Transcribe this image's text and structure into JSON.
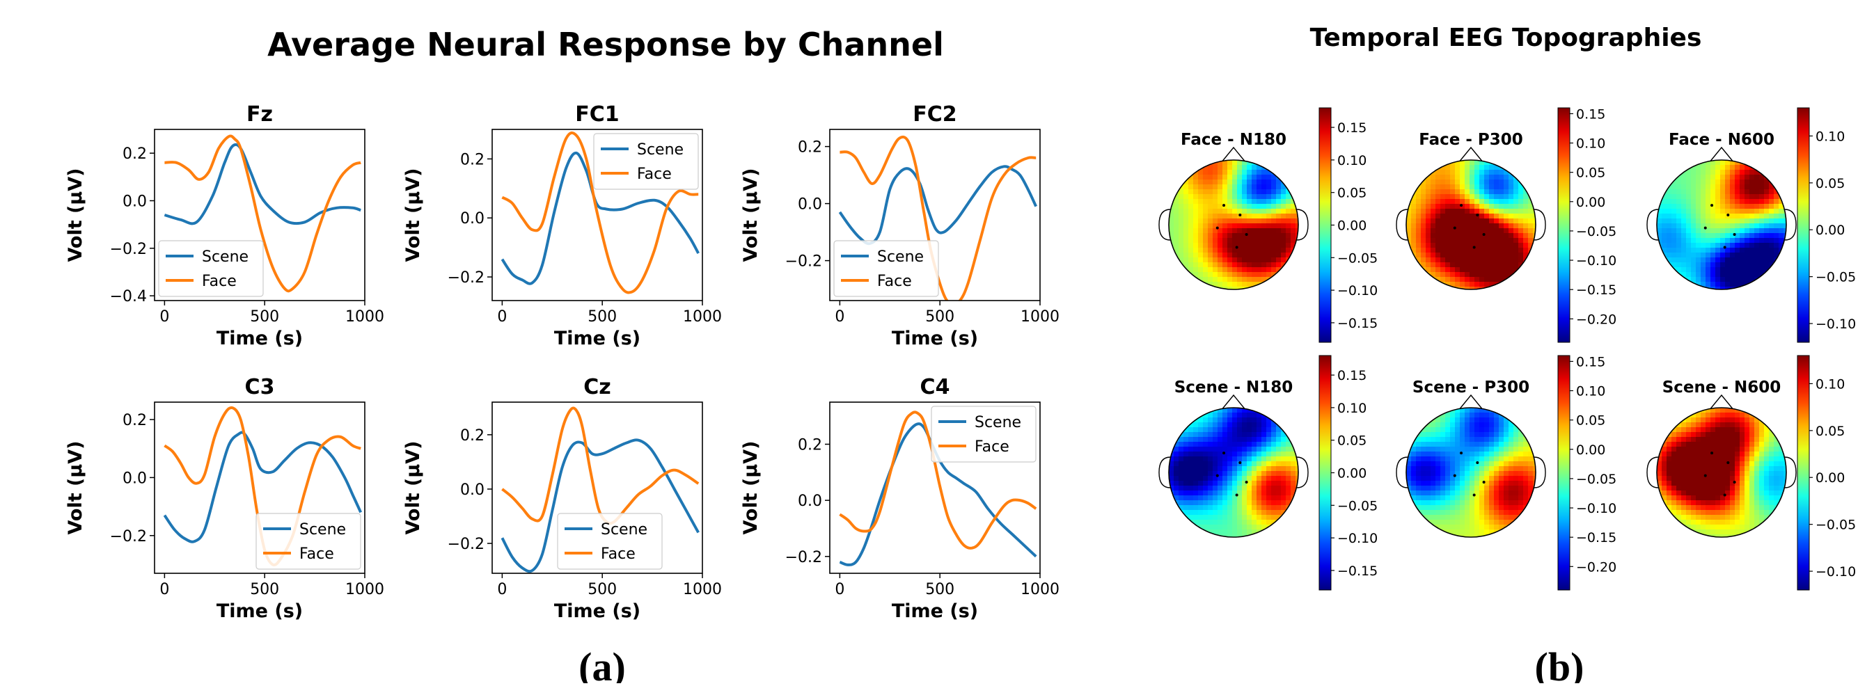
{
  "figure": {
    "panel_a_label": "(a)",
    "panel_b_label": "(b)",
    "left_title": "Average Neural Response by Channel",
    "right_title": "Temporal EEG Topographies"
  },
  "colors": {
    "scene": "#1f77b4",
    "face": "#ff7f0e"
  },
  "chart_data": [
    {
      "type": "line",
      "title": "Fz",
      "xlabel": "Time (s)",
      "ylabel": "Volt (μV)",
      "xlim": [
        -50,
        1000
      ],
      "ylim": [
        -0.42,
        0.3
      ],
      "xticks": [
        0,
        500,
        1000
      ],
      "xtick_labels": [
        "0",
        "500",
        "1000"
      ],
      "yticks": [
        -0.4,
        -0.2,
        0.0,
        0.2
      ],
      "ytick_labels": [
        "−0.4",
        "−0.2",
        "0.0",
        "0.2"
      ],
      "legend": "lower-left",
      "series": [
        {
          "name": "Scene",
          "x": [
            0,
            80,
            160,
            240,
            300,
            340,
            380,
            430,
            480,
            540,
            620,
            700,
            780,
            860,
            940,
            980
          ],
          "y": [
            -0.06,
            -0.08,
            -0.09,
            0.02,
            0.16,
            0.23,
            0.22,
            0.12,
            0.02,
            -0.04,
            -0.09,
            -0.09,
            -0.05,
            -0.03,
            -0.03,
            -0.04
          ]
        },
        {
          "name": "Face",
          "x": [
            0,
            60,
            120,
            170,
            220,
            270,
            320,
            350,
            380,
            430,
            480,
            540,
            600,
            640,
            700,
            760,
            820,
            880,
            940,
            980
          ],
          "y": [
            0.16,
            0.16,
            0.13,
            0.09,
            0.12,
            0.22,
            0.27,
            0.26,
            0.22,
            0.06,
            -0.12,
            -0.28,
            -0.37,
            -0.37,
            -0.3,
            -0.14,
            0.0,
            0.1,
            0.15,
            0.16
          ]
        }
      ]
    },
    {
      "type": "line",
      "title": "FC1",
      "xlabel": "Time (s)",
      "ylabel": "Volt (μV)",
      "xlim": [
        -50,
        1000
      ],
      "ylim": [
        -0.28,
        0.3
      ],
      "xticks": [
        0,
        500,
        1000
      ],
      "xtick_labels": [
        "0",
        "500",
        "1000"
      ],
      "yticks": [
        -0.2,
        0.0,
        0.2
      ],
      "ytick_labels": [
        "−0.2",
        "0.0",
        "0.2"
      ],
      "legend": "top-right",
      "series": [
        {
          "name": "Scene",
          "x": [
            0,
            50,
            100,
            150,
            200,
            260,
            320,
            370,
            420,
            470,
            520,
            600,
            680,
            760,
            820,
            880,
            940,
            980
          ],
          "y": [
            -0.14,
            -0.19,
            -0.21,
            -0.22,
            -0.16,
            0.02,
            0.17,
            0.22,
            0.16,
            0.05,
            0.03,
            0.03,
            0.05,
            0.06,
            0.04,
            -0.01,
            -0.07,
            -0.12
          ]
        },
        {
          "name": "Face",
          "x": [
            0,
            50,
            100,
            150,
            200,
            260,
            320,
            370,
            420,
            470,
            540,
            600,
            650,
            700,
            760,
            820,
            880,
            940,
            980
          ],
          "y": [
            0.07,
            0.05,
            0.0,
            -0.04,
            -0.02,
            0.14,
            0.27,
            0.28,
            0.2,
            0.03,
            -0.16,
            -0.24,
            -0.25,
            -0.21,
            -0.11,
            0.03,
            0.09,
            0.08,
            0.08
          ]
        }
      ]
    },
    {
      "type": "line",
      "title": "FC2",
      "xlabel": "Time (s)",
      "ylabel": "Volt (μV)",
      "xlim": [
        -50,
        1000
      ],
      "ylim": [
        -0.34,
        0.26
      ],
      "xticks": [
        0,
        500,
        1000
      ],
      "xtick_labels": [
        "0",
        "500",
        "1000"
      ],
      "yticks": [
        -0.2,
        0.0,
        0.2
      ],
      "ytick_labels": [
        "−0.2",
        "0.0",
        "0.2"
      ],
      "legend": "lower-left",
      "series": [
        {
          "name": "Scene",
          "x": [
            0,
            50,
            100,
            150,
            200,
            250,
            300,
            350,
            400,
            440,
            480,
            520,
            580,
            640,
            700,
            760,
            820,
            860,
            900,
            940,
            980
          ],
          "y": [
            -0.03,
            -0.08,
            -0.12,
            -0.14,
            -0.1,
            0.05,
            0.11,
            0.12,
            0.07,
            -0.02,
            -0.09,
            -0.1,
            -0.06,
            0.0,
            0.06,
            0.11,
            0.13,
            0.12,
            0.1,
            0.05,
            -0.01
          ]
        },
        {
          "name": "Face",
          "x": [
            0,
            40,
            80,
            120,
            160,
            200,
            260,
            300,
            340,
            380,
            420,
            460,
            520,
            560,
            600,
            640,
            700,
            760,
            820,
            880,
            940,
            980
          ],
          "y": [
            0.18,
            0.18,
            0.16,
            0.11,
            0.07,
            0.1,
            0.19,
            0.23,
            0.22,
            0.13,
            -0.03,
            -0.18,
            -0.32,
            -0.35,
            -0.34,
            -0.28,
            -0.13,
            0.02,
            0.1,
            0.14,
            0.16,
            0.16
          ]
        }
      ]
    },
    {
      "type": "line",
      "title": "C3",
      "xlabel": "Time (s)",
      "ylabel": "Volt (μV)",
      "xlim": [
        -50,
        1000
      ],
      "ylim": [
        -0.33,
        0.26
      ],
      "xticks": [
        0,
        500,
        1000
      ],
      "xtick_labels": [
        "0",
        "500",
        "1000"
      ],
      "yticks": [
        -0.2,
        0.0,
        0.2
      ],
      "ytick_labels": [
        "−0.2",
        "0.0",
        "0.2"
      ],
      "legend": "lower-right",
      "series": [
        {
          "name": "Scene",
          "x": [
            0,
            50,
            100,
            150,
            200,
            260,
            320,
            370,
            400,
            440,
            480,
            540,
            600,
            660,
            720,
            780,
            840,
            900,
            940,
            980
          ],
          "y": [
            -0.13,
            -0.18,
            -0.21,
            -0.22,
            -0.18,
            -0.03,
            0.11,
            0.15,
            0.15,
            0.1,
            0.03,
            0.02,
            0.06,
            0.1,
            0.12,
            0.11,
            0.07,
            0.0,
            -0.06,
            -0.12
          ]
        },
        {
          "name": "Face",
          "x": [
            0,
            40,
            80,
            120,
            160,
            200,
            250,
            300,
            340,
            380,
            420,
            460,
            500,
            540,
            580,
            640,
            700,
            760,
            820,
            880,
            940,
            980
          ],
          "y": [
            0.11,
            0.09,
            0.05,
            0.0,
            -0.02,
            0.01,
            0.14,
            0.22,
            0.24,
            0.2,
            0.07,
            -0.11,
            -0.25,
            -0.3,
            -0.28,
            -0.2,
            -0.05,
            0.08,
            0.13,
            0.14,
            0.11,
            0.1
          ]
        }
      ]
    },
    {
      "type": "line",
      "title": "Cz",
      "xlabel": "Time (s)",
      "ylabel": "Volt (μV)",
      "xlim": [
        -50,
        1000
      ],
      "ylim": [
        -0.31,
        0.32
      ],
      "xticks": [
        0,
        500,
        1000
      ],
      "xtick_labels": [
        "0",
        "500",
        "1000"
      ],
      "yticks": [
        -0.2,
        0.0,
        0.2
      ],
      "ytick_labels": [
        "−0.2",
        "0.0",
        "0.2"
      ],
      "legend": "lower-center",
      "series": [
        {
          "name": "Scene",
          "x": [
            0,
            50,
            100,
            150,
            200,
            250,
            300,
            350,
            400,
            450,
            500,
            560,
            620,
            680,
            740,
            800,
            860,
            920,
            980
          ],
          "y": [
            -0.18,
            -0.25,
            -0.29,
            -0.3,
            -0.24,
            -0.08,
            0.08,
            0.16,
            0.17,
            0.13,
            0.13,
            0.15,
            0.17,
            0.18,
            0.15,
            0.08,
            0.0,
            -0.08,
            -0.16
          ]
        },
        {
          "name": "Face",
          "x": [
            0,
            50,
            100,
            150,
            200,
            250,
            300,
            340,
            370,
            400,
            440,
            480,
            520,
            560,
            620,
            680,
            740,
            800,
            860,
            920,
            980
          ],
          "y": [
            0.0,
            -0.03,
            -0.07,
            -0.11,
            -0.1,
            0.05,
            0.22,
            0.29,
            0.29,
            0.23,
            0.07,
            -0.07,
            -0.12,
            -0.12,
            -0.07,
            -0.02,
            0.01,
            0.05,
            0.07,
            0.05,
            0.02
          ]
        }
      ]
    },
    {
      "type": "line",
      "title": "C4",
      "xlabel": "Time (s)",
      "ylabel": "Volt (μV)",
      "xlim": [
        -50,
        1000
      ],
      "ylim": [
        -0.26,
        0.35
      ],
      "xticks": [
        0,
        500,
        1000
      ],
      "xtick_labels": [
        "0",
        "500",
        "1000"
      ],
      "yticks": [
        -0.2,
        0.0,
        0.2
      ],
      "ytick_labels": [
        "−0.2",
        "0.0",
        "0.2"
      ],
      "legend": "top-right",
      "series": [
        {
          "name": "Scene",
          "x": [
            0,
            40,
            80,
            120,
            160,
            200,
            260,
            320,
            380,
            420,
            460,
            500,
            540,
            580,
            620,
            680,
            740,
            800,
            860,
            920,
            980
          ],
          "y": [
            -0.22,
            -0.23,
            -0.22,
            -0.17,
            -0.09,
            0.0,
            0.12,
            0.22,
            0.27,
            0.26,
            0.2,
            0.14,
            0.1,
            0.08,
            0.06,
            0.03,
            -0.03,
            -0.08,
            -0.12,
            -0.16,
            -0.2
          ]
        },
        {
          "name": "Face",
          "x": [
            0,
            40,
            80,
            120,
            160,
            200,
            260,
            320,
            360,
            390,
            420,
            460,
            500,
            540,
            580,
            620,
            660,
            700,
            760,
            820,
            860,
            900,
            940,
            980
          ],
          "y": [
            -0.05,
            -0.07,
            -0.1,
            -0.11,
            -0.1,
            -0.04,
            0.12,
            0.27,
            0.31,
            0.31,
            0.28,
            0.18,
            0.05,
            -0.06,
            -0.12,
            -0.16,
            -0.17,
            -0.15,
            -0.08,
            -0.02,
            0.0,
            0.0,
            -0.01,
            -0.03
          ]
        }
      ]
    },
    {
      "type": "heatmap",
      "title": "Face - N180",
      "colormap": "jet",
      "range": [
        -0.18,
        0.18
      ],
      "ticks": [
        0.15,
        0.1,
        0.05,
        0.0,
        -0.05,
        -0.1,
        -0.15
      ],
      "tick_labels": [
        "0.15",
        "0.10",
        "0.05",
        "0.00",
        "−0.05",
        "−0.10",
        "−0.15"
      ],
      "sources": [
        [
          0.0,
          0.0,
          -0.002
        ],
        [
          0.45,
          -0.5,
          -0.18
        ],
        [
          -0.3,
          -0.85,
          0.12
        ],
        [
          0.4,
          0.35,
          0.18
        ],
        [
          -0.1,
          0.2,
          0.1
        ],
        [
          0.85,
          0.0,
          0.12
        ]
      ]
    },
    {
      "type": "heatmap",
      "title": "Face - P300",
      "colormap": "jet",
      "range": [
        -0.24,
        0.16
      ],
      "ticks": [
        0.15,
        0.1,
        0.05,
        0.0,
        -0.05,
        -0.1,
        -0.15,
        -0.2
      ],
      "tick_labels": [
        "0.15",
        "0.10",
        "0.05",
        "0.00",
        "−0.05",
        "−0.10",
        "−0.15",
        "−0.20"
      ],
      "sources": [
        [
          0.0,
          0.0,
          0.08
        ],
        [
          0.3,
          -0.55,
          -0.22
        ],
        [
          0.45,
          0.55,
          0.2
        ],
        [
          -0.35,
          0.2,
          0.12
        ],
        [
          -0.2,
          -0.7,
          0.08
        ],
        [
          0.05,
          0.18,
          0.15
        ]
      ]
    },
    {
      "type": "heatmap",
      "title": "Face - N600",
      "colormap": "jet",
      "range": [
        -0.12,
        0.13
      ],
      "ticks": [
        0.1,
        0.05,
        0.0,
        -0.05,
        -0.1
      ],
      "tick_labels": [
        "0.10",
        "0.05",
        "0.00",
        "−0.05",
        "−0.10"
      ],
      "sources": [
        [
          0.0,
          0.0,
          -0.005
        ],
        [
          0.55,
          -0.6,
          0.14
        ],
        [
          0.2,
          0.7,
          -0.14
        ],
        [
          -0.75,
          0.2,
          -0.06
        ],
        [
          -0.1,
          0.1,
          0.05
        ],
        [
          0.8,
          0.35,
          -0.1
        ]
      ]
    },
    {
      "type": "heatmap",
      "title": "Scene - N180",
      "colormap": "jet",
      "range": [
        -0.18,
        0.18
      ],
      "ticks": [
        0.15,
        0.1,
        0.05,
        0.0,
        -0.05,
        -0.1,
        -0.15
      ],
      "tick_labels": [
        "0.15",
        "0.10",
        "0.05",
        "0.00",
        "−0.05",
        "−0.10",
        "−0.15"
      ],
      "sources": [
        [
          0.0,
          0.0,
          -0.05
        ],
        [
          -0.75,
          0.0,
          -0.18
        ],
        [
          0.3,
          -0.75,
          -0.16
        ],
        [
          0.6,
          0.25,
          0.17
        ],
        [
          0.0,
          0.7,
          -0.02
        ],
        [
          -0.2,
          -0.3,
          -0.05
        ]
      ]
    },
    {
      "type": "heatmap",
      "title": "Scene - P300",
      "colormap": "jet",
      "range": [
        -0.24,
        0.16
      ],
      "ticks": [
        0.15,
        0.1,
        0.05,
        0.0,
        -0.05,
        -0.1,
        -0.15,
        -0.2
      ],
      "tick_labels": [
        "0.15",
        "0.10",
        "0.05",
        "0.00",
        "−0.05",
        "−0.10",
        "−0.15",
        "−0.20"
      ],
      "sources": [
        [
          0.0,
          0.0,
          -0.06
        ],
        [
          -0.75,
          0.0,
          -0.2
        ],
        [
          0.2,
          -0.75,
          -0.18
        ],
        [
          0.6,
          0.3,
          0.16
        ],
        [
          0.0,
          0.7,
          -0.02
        ]
      ]
    },
    {
      "type": "heatmap",
      "title": "Scene - N600",
      "colormap": "jet",
      "range": [
        -0.12,
        0.13
      ],
      "ticks": [
        0.1,
        0.05,
        0.0,
        -0.05,
        -0.1
      ],
      "tick_labels": [
        "0.10",
        "0.05",
        "0.00",
        "−0.05",
        "−0.10"
      ],
      "sources": [
        [
          0.0,
          0.0,
          0.03
        ],
        [
          -0.6,
          -0.1,
          0.14
        ],
        [
          0.15,
          -0.6,
          0.12
        ],
        [
          0.7,
          0.1,
          -0.06
        ],
        [
          0.4,
          0.75,
          0.02
        ],
        [
          -0.1,
          0.2,
          0.1
        ]
      ]
    }
  ]
}
